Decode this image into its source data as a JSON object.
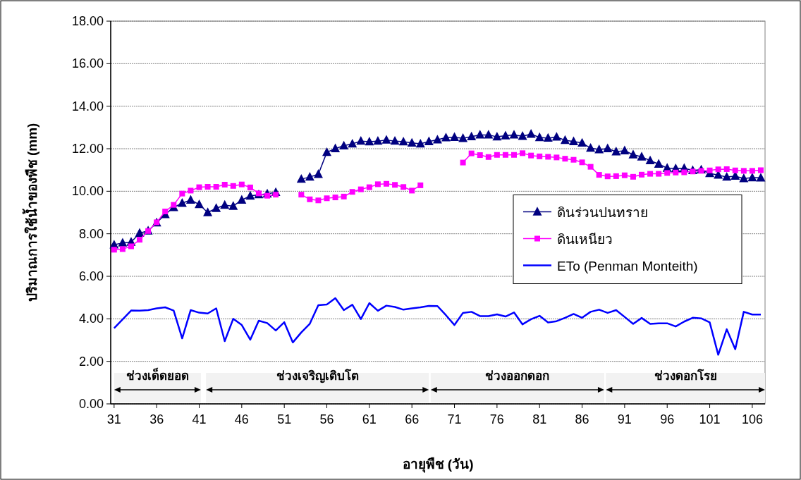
{
  "chart_data": {
    "type": "line",
    "xlabel": "อายุพืช (วัน)",
    "ylabel": "ปริมาณการใช้น้ำของพืช (mm)",
    "x": [
      31,
      32,
      33,
      34,
      35,
      36,
      37,
      38,
      39,
      40,
      41,
      42,
      43,
      44,
      45,
      46,
      47,
      48,
      49,
      50,
      51,
      52,
      53,
      54,
      55,
      56,
      57,
      58,
      59,
      60,
      61,
      62,
      63,
      64,
      65,
      66,
      67,
      68,
      69,
      70,
      71,
      72,
      73,
      74,
      75,
      76,
      77,
      78,
      79,
      80,
      81,
      82,
      83,
      84,
      85,
      86,
      87,
      88,
      89,
      90,
      91,
      92,
      93,
      94,
      95,
      96,
      97,
      98,
      99,
      100,
      101,
      102,
      103,
      104,
      105,
      106,
      107
    ],
    "xlim": [
      30.6,
      107.5
    ],
    "xticks": [
      31,
      36,
      41,
      46,
      51,
      56,
      61,
      66,
      71,
      76,
      81,
      86,
      91,
      96,
      101,
      106
    ],
    "ylim": [
      0,
      18
    ],
    "yticks": [
      {
        "value": 0,
        "label": "0.00"
      },
      {
        "value": 2,
        "label": "2.00"
      },
      {
        "value": 4,
        "label": "4.00"
      },
      {
        "value": 6,
        "label": "6.00"
      },
      {
        "value": 8,
        "label": "8.00"
      },
      {
        "value": 10,
        "label": "10.00"
      },
      {
        "value": 12,
        "label": "12.00"
      },
      {
        "value": 14,
        "label": "14.00"
      },
      {
        "value": 16,
        "label": "16.00"
      },
      {
        "value": 18,
        "label": "18.00"
      }
    ],
    "grid": "y",
    "legend": "right",
    "series": [
      {
        "name": "ดินร่วนปนทราย",
        "color": "#000080",
        "marker": "triangle",
        "values": [
          7.48,
          7.57,
          7.61,
          8.03,
          8.14,
          8.52,
          8.91,
          9.24,
          9.44,
          9.59,
          9.38,
          9.0,
          9.2,
          9.35,
          9.3,
          9.59,
          9.78,
          9.84,
          9.88,
          9.95,
          null,
          null,
          10.57,
          10.67,
          10.8,
          11.83,
          12.01,
          12.14,
          12.23,
          12.36,
          12.33,
          12.36,
          12.41,
          12.36,
          12.33,
          12.27,
          12.23,
          12.34,
          12.42,
          12.52,
          12.54,
          12.49,
          12.57,
          12.65,
          12.65,
          12.56,
          12.61,
          12.65,
          12.59,
          12.69,
          12.53,
          12.5,
          12.55,
          12.4,
          12.34,
          12.27,
          12.03,
          11.96,
          12.01,
          11.86,
          11.91,
          11.72,
          11.62,
          11.44,
          11.28,
          11.09,
          11.07,
          11.08,
          10.98,
          11.01,
          10.84,
          10.76,
          10.67,
          10.71,
          10.6,
          10.64,
          10.63
        ]
      },
      {
        "name": "ดินเหนียว",
        "color": "#ff00ff",
        "marker": "square",
        "values": [
          7.25,
          7.28,
          7.41,
          7.72,
          8.13,
          8.54,
          9.05,
          9.36,
          9.89,
          10.03,
          10.19,
          10.21,
          10.21,
          10.31,
          10.25,
          10.32,
          10.18,
          9.9,
          9.79,
          9.84,
          null,
          null,
          9.84,
          9.62,
          9.57,
          9.67,
          9.71,
          9.75,
          9.97,
          10.09,
          10.19,
          10.33,
          10.35,
          10.3,
          10.2,
          10.03,
          10.28,
          null,
          null,
          null,
          null,
          11.35,
          11.78,
          11.7,
          11.61,
          11.71,
          11.71,
          11.71,
          11.79,
          11.68,
          11.64,
          11.62,
          11.59,
          11.53,
          11.48,
          11.36,
          11.15,
          10.77,
          10.7,
          10.71,
          10.75,
          10.68,
          10.78,
          10.82,
          10.82,
          10.86,
          10.88,
          10.89,
          10.93,
          10.96,
          10.98,
          11.03,
          11.04,
          10.98,
          10.96,
          10.96,
          10.99
        ]
      },
      {
        "name": "ETo (Penman Monteith)",
        "color": "#0000ff",
        "marker": "none",
        "values": [
          3.56,
          3.97,
          4.39,
          4.38,
          4.41,
          4.49,
          4.54,
          4.39,
          3.08,
          4.41,
          4.29,
          4.25,
          4.49,
          2.95,
          4.0,
          3.71,
          3.02,
          3.91,
          3.8,
          3.45,
          3.84,
          2.89,
          3.36,
          3.77,
          4.64,
          4.67,
          4.97,
          4.41,
          4.66,
          3.99,
          4.74,
          4.38,
          4.62,
          4.56,
          4.43,
          4.49,
          4.54,
          4.61,
          4.6,
          4.17,
          3.71,
          4.28,
          4.33,
          4.13,
          4.13,
          4.21,
          4.11,
          4.3,
          3.74,
          3.98,
          4.14,
          3.83,
          3.89,
          4.05,
          4.23,
          4.05,
          4.33,
          4.43,
          4.28,
          4.41,
          4.09,
          3.76,
          4.04,
          3.76,
          3.79,
          3.79,
          3.64,
          3.87,
          4.05,
          4.02,
          3.83,
          2.31,
          3.51,
          2.57,
          4.33,
          4.2,
          4.2
        ]
      }
    ],
    "bands": [
      {
        "axis": "x",
        "from": 31,
        "to": 41.2,
        "label": "ช่วงเด็ดยอด",
        "color": "#f2f2f2"
      },
      {
        "axis": "x",
        "from": 41.8,
        "to": 68,
        "label": "ช่วงเจริญเติบโต",
        "color": "#f2f2f2"
      },
      {
        "axis": "x",
        "from": 68.2,
        "to": 88.6,
        "label": "ช่วงออกดอก",
        "color": "#f2f2f2"
      },
      {
        "axis": "x",
        "from": 88.8,
        "to": 107.5,
        "label": "ช่วงดอกโรย",
        "color": "#f2f2f2"
      }
    ]
  }
}
